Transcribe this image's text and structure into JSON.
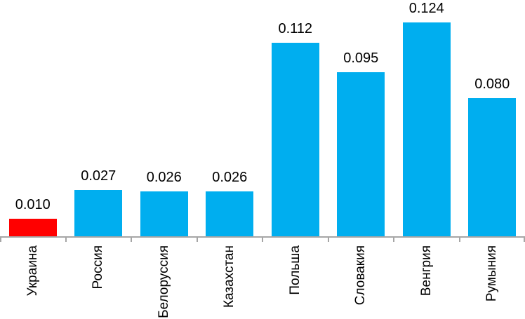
{
  "chart_data": {
    "type": "bar",
    "categories": [
      "Украина",
      "Россия",
      "Белоруссия",
      "Казахстан",
      "Польша",
      "Словакия",
      "Венгрия",
      "Румыния"
    ],
    "values": [
      0.01,
      0.027,
      0.026,
      0.026,
      0.112,
      0.095,
      0.124,
      0.08
    ],
    "value_labels": [
      "0.010",
      "0.027",
      "0.026",
      "0.026",
      "0.112",
      "0.095",
      "0.124",
      "0.080"
    ],
    "colors": [
      "#ff0000",
      "#00aeef",
      "#00aeef",
      "#00aeef",
      "#00aeef",
      "#00aeef",
      "#00aeef",
      "#00aeef"
    ],
    "highlight_color": "#ff0000",
    "bar_color": "#00aeef",
    "axis_color": "#a6a6a6",
    "label_color": "#000000",
    "title": "",
    "xlabel": "",
    "ylabel": "",
    "ylim": [
      0,
      0.137
    ],
    "grid": false,
    "legend": false,
    "data_labels": true,
    "category_label_rotation": 90
  }
}
